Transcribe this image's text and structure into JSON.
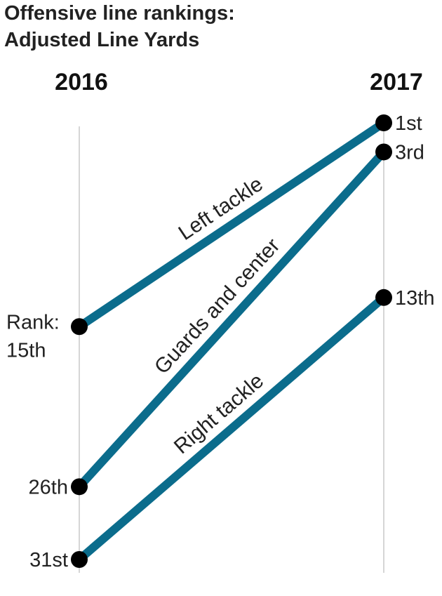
{
  "chart_data": {
    "type": "slope",
    "title": [
      "Offensive line rankings:",
      "Adjusted Line Yards"
    ],
    "x": [
      "2016",
      "2017"
    ],
    "rank_prefix": "Rank:",
    "series": [
      {
        "name": "Left tackle",
        "values": [
          15,
          1
        ],
        "labels": [
          "15th",
          "1st"
        ]
      },
      {
        "name": "Guards and center",
        "values": [
          26,
          3
        ],
        "labels": [
          "26th",
          "3rd"
        ]
      },
      {
        "name": "Right tackle",
        "values": [
          31,
          13
        ],
        "labels": [
          "31st",
          "13th"
        ]
      }
    ],
    "line_color": "#0b6c8c",
    "dot_color": "#000000",
    "grid": false,
    "legend": "none"
  }
}
